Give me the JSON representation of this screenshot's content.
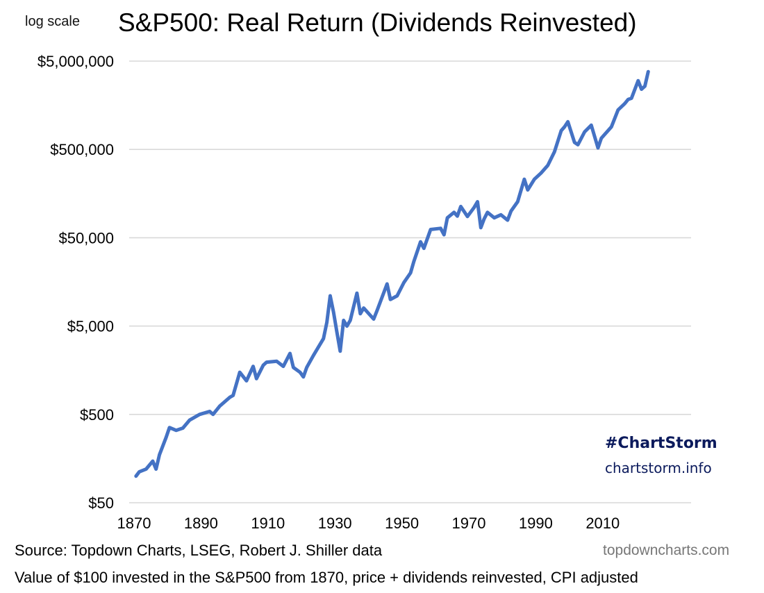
{
  "header": {
    "scale_note": "log scale",
    "title": "S&P500: Real Return (Dividends Reinvested)"
  },
  "branding": {
    "hashtag": "#ChartStorm",
    "url": "chartstorm.info",
    "site": "topdowncharts.com"
  },
  "footer": {
    "source": "Source: Topdown Charts, LSEG, Robert J. Shiller data",
    "caption": "Value of $100 invested in the S&P500 from 1870, price + dividends reinvested, CPI adjusted"
  },
  "colors": {
    "series": "#4472c4",
    "grid": "#d9d9d9",
    "brand": "#0b1a5c",
    "site": "#777777"
  },
  "chart_data": {
    "type": "line",
    "title": "S&P500: Real Return (Dividends Reinvested)",
    "xlabel": "",
    "ylabel": "",
    "yscale": "log",
    "grid": true,
    "legend": "none",
    "xlim": [
      1868,
      2036
    ],
    "ylim": [
      50,
      5000000
    ],
    "x_ticks": [
      1870,
      1890,
      1910,
      1930,
      1950,
      1970,
      1990,
      2010
    ],
    "x_tick_labels": [
      "1870",
      "1890",
      "1910",
      "1930",
      "1950",
      "1970",
      "1990",
      "2010"
    ],
    "y_ticks": [
      50,
      500,
      5000,
      50000,
      500000,
      5000000
    ],
    "y_tick_labels": [
      "$50",
      "$500",
      "$5,000",
      "$50,000",
      "$500,000",
      "$5,000,000"
    ],
    "series": [
      {
        "name": "S&P500 real total return ($100 invested)",
        "x": [
          1871,
          1872,
          1874,
          1876,
          1877,
          1878,
          1880,
          1881,
          1883,
          1885,
          1887,
          1890,
          1893,
          1894,
          1896,
          1899,
          1900,
          1902,
          1904,
          1906,
          1907,
          1909,
          1910,
          1913,
          1915,
          1917,
          1918,
          1920,
          1921,
          1922,
          1924,
          1927,
          1928,
          1929,
          1930,
          1931,
          1932,
          1933,
          1934,
          1935,
          1937,
          1938,
          1939,
          1942,
          1943,
          1946,
          1947,
          1949,
          1951,
          1953,
          1954,
          1956,
          1957,
          1959,
          1962,
          1963,
          1964,
          1966,
          1967,
          1968,
          1970,
          1972,
          1973,
          1974,
          1975,
          1976,
          1978,
          1980,
          1982,
          1983,
          1985,
          1987,
          1988,
          1990,
          1992,
          1994,
          1996,
          1998,
          1999,
          2000,
          2002,
          2003,
          2005,
          2007,
          2009,
          2010,
          2013,
          2015,
          2017,
          2018,
          2019,
          2021,
          2022,
          2023,
          2024
        ],
        "values": [
          100,
          112,
          120,
          148,
          120,
          175,
          275,
          355,
          330,
          350,
          430,
          500,
          540,
          500,
          620,
          780,
          820,
          1500,
          1200,
          1750,
          1270,
          1800,
          1950,
          2000,
          1750,
          2450,
          1700,
          1500,
          1330,
          1700,
          2330,
          3600,
          5500,
          11000,
          7200,
          4300,
          2600,
          5800,
          5000,
          5800,
          11800,
          6900,
          8000,
          6000,
          7500,
          15000,
          10000,
          11000,
          15500,
          20000,
          27000,
          45000,
          38000,
          62000,
          64000,
          54000,
          84000,
          97000,
          88000,
          113000,
          87000,
          110000,
          128000,
          65000,
          82000,
          97000,
          84000,
          91000,
          79000,
          100000,
          128000,
          230000,
          174000,
          230000,
          270000,
          330000,
          470000,
          815000,
          900000,
          1030000,
          600000,
          565000,
          790000,
          940000,
          520000,
          670000,
          900000,
          1400000,
          1650000,
          1840000,
          1900000,
          3000000,
          2400000,
          2600000,
          3800000
        ]
      }
    ],
    "annotations": [
      "log scale",
      "#ChartStorm",
      "chartstorm.info",
      "topdowncharts.com"
    ]
  }
}
